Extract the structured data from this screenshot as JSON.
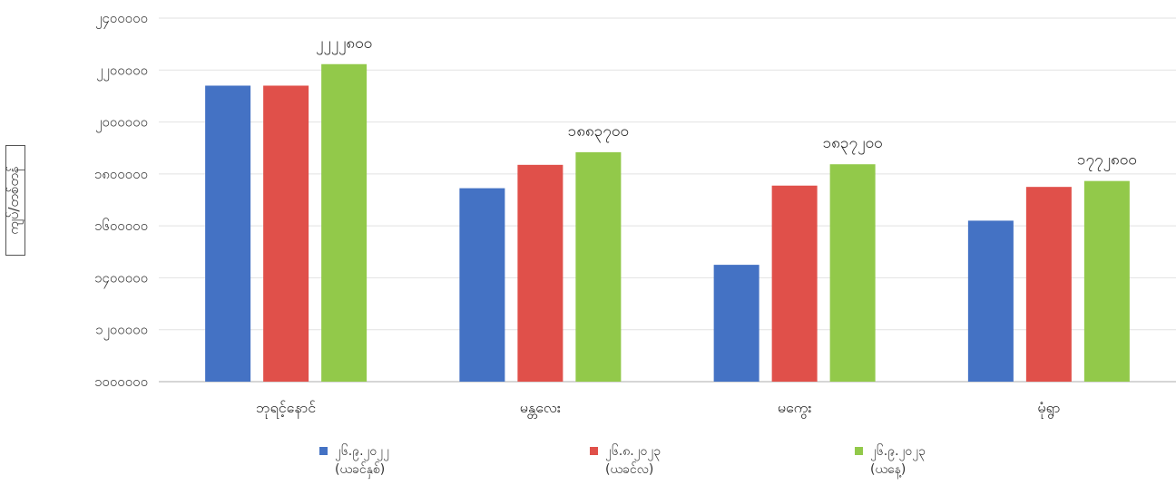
{
  "chart_data": {
    "type": "bar",
    "title": "",
    "ylabel": "ကျပ်/တစ်တန်",
    "xlabel": "",
    "ylim": [
      1000000,
      2400000
    ],
    "yticks": [
      {
        "value": 1000000,
        "label": "၁၀၀၀၀၀၀"
      },
      {
        "value": 1200000,
        "label": "၁၂၀၀၀၀၀"
      },
      {
        "value": 1400000,
        "label": "၁၄၀၀၀၀၀"
      },
      {
        "value": 1600000,
        "label": "၁၆၀၀၀၀၀"
      },
      {
        "value": 1800000,
        "label": "၁၈၀၀၀၀၀"
      },
      {
        "value": 2000000,
        "label": "၂၀၀၀၀၀၀"
      },
      {
        "value": 2200000,
        "label": "၂၂၀၀၀၀၀"
      },
      {
        "value": 2400000,
        "label": "၂၄၀၀၀၀၀"
      }
    ],
    "categories": [
      "ဘုရင့်နောင်",
      "မန္တလေး",
      "မကွေး",
      "မုံရွာ"
    ],
    "series": [
      {
        "name": "၂၆.၉.၂၀၂၂",
        "sub": "(ယခင်နှစ်)",
        "color": "#4472C4",
        "values": [
          2140000,
          1745000,
          1450000,
          1620000
        ]
      },
      {
        "name": "၂၆.၈.၂၀၂၃",
        "sub": "(ယခင်လ)",
        "color": "#E0504A",
        "values": [
          2140000,
          1835000,
          1755000,
          1750000
        ]
      },
      {
        "name": "၂၆.၉.၂၀၂၃",
        "sub": "(ယနေ့)",
        "color": "#92C94A",
        "values": [
          2222800,
          1883700,
          1837200,
          1772800
        ],
        "labels": [
          "၂၂၂၂၈၀၀",
          "၁၈၈၃၇၀၀",
          "၁၈၃၇၂၀၀",
          "၁၇၇၂၈၀၀"
        ]
      }
    ],
    "grid": true,
    "legend": "bottom"
  }
}
